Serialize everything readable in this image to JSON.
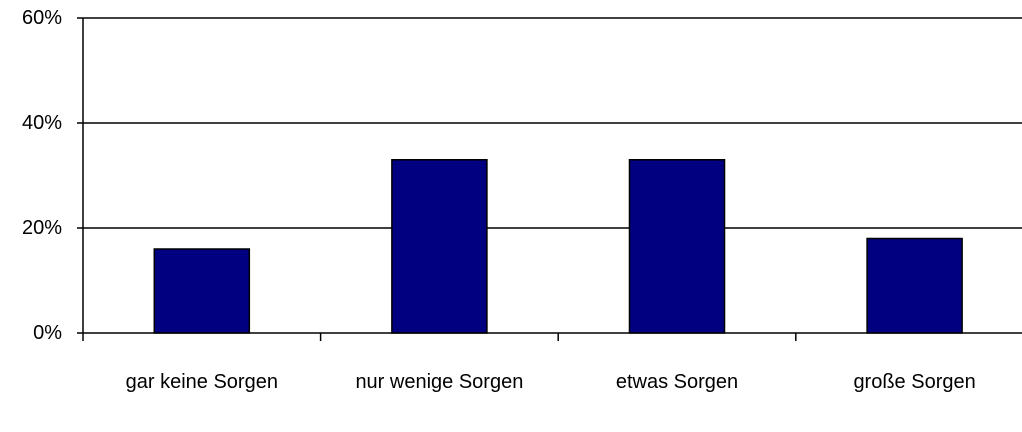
{
  "chart_data": {
    "type": "bar",
    "categories": [
      "gar keine Sorgen",
      "nur wenige Sorgen",
      "etwas Sorgen",
      "große Sorgen"
    ],
    "values": [
      16,
      33,
      33,
      18
    ],
    "color": "#000080",
    "ylim": [
      0,
      60
    ],
    "yticks": [
      {
        "value": 0,
        "label": "0%"
      },
      {
        "value": 20,
        "label": "20%"
      },
      {
        "value": 40,
        "label": "40%"
      },
      {
        "value": 60,
        "label": "60%"
      }
    ],
    "grid": true
  }
}
